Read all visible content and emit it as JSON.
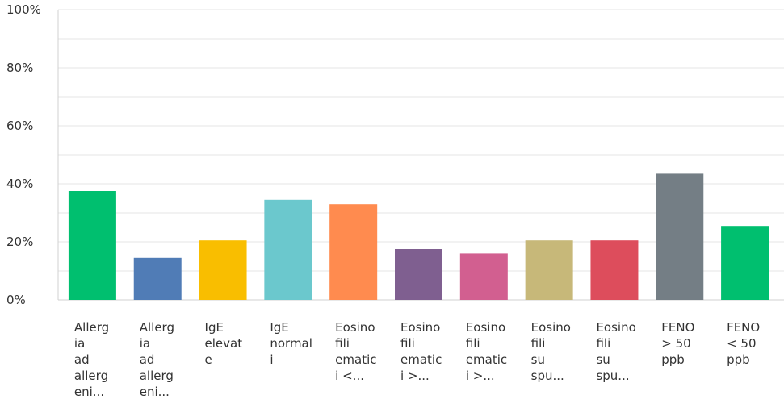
{
  "chart_data": {
    "type": "bar",
    "title": "",
    "xlabel": "",
    "ylabel": "",
    "ylim": [
      0,
      100
    ],
    "yticks": [
      "0%",
      "20%",
      "40%",
      "60%",
      "80%",
      "100%"
    ],
    "grid": true,
    "categories": [
      {
        "lines": [
          "Allerg",
          "ia",
          "ad",
          "allerg",
          "eni..."
        ]
      },
      {
        "lines": [
          "Allerg",
          "ia",
          "ad",
          "allerg",
          "eni..."
        ]
      },
      {
        "lines": [
          "IgE",
          "elevat",
          "e"
        ]
      },
      {
        "lines": [
          "IgE",
          "normal",
          "i"
        ]
      },
      {
        "lines": [
          "Eosino",
          "fili",
          "ematic",
          "i <..."
        ]
      },
      {
        "lines": [
          "Eosino",
          "fili",
          "ematic",
          "i >..."
        ]
      },
      {
        "lines": [
          "Eosino",
          "fili",
          "ematic",
          "i >..."
        ]
      },
      {
        "lines": [
          "Eosino",
          "fili",
          "su",
          "spu..."
        ]
      },
      {
        "lines": [
          "Eosino",
          "fili",
          "su",
          "spu..."
        ]
      },
      {
        "lines": [
          "FENO",
          "> 50",
          "ppb"
        ]
      },
      {
        "lines": [
          "FENO",
          "< 50",
          "ppb"
        ]
      }
    ],
    "values": [
      37.5,
      14.5,
      20.5,
      34.5,
      33,
      17.5,
      16,
      20.5,
      20.5,
      43.5,
      25.5
    ],
    "colors": [
      "#00bf6f",
      "#507cb6",
      "#f9be00",
      "#6bc8cd",
      "#ff8b4f",
      "#7f5f90",
      "#d25f90",
      "#c7b879",
      "#dd4d5c",
      "#747e85",
      "#00bf6f"
    ]
  }
}
